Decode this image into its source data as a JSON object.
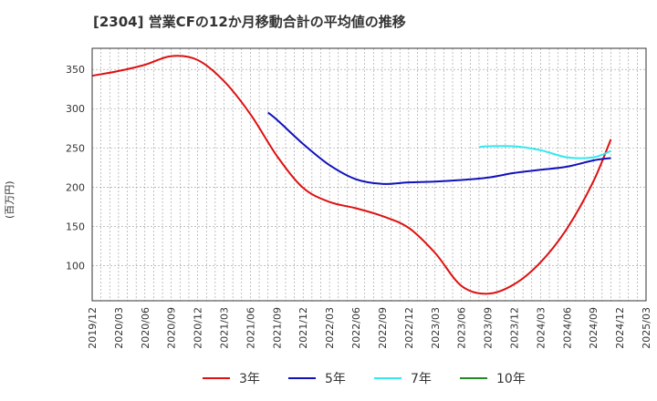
{
  "chart_data": {
    "type": "line",
    "title": "[2304]  営業CFの12か月移動合計の平均値の推移",
    "ylabel": "(百万円)",
    "xlabel": "",
    "x_ticks": [
      "2019/12",
      "2020/03",
      "2020/06",
      "2020/09",
      "2020/12",
      "2021/03",
      "2021/06",
      "2021/09",
      "2021/12",
      "2022/03",
      "2022/06",
      "2022/09",
      "2022/12",
      "2023/03",
      "2023/06",
      "2023/09",
      "2023/12",
      "2024/03",
      "2024/06",
      "2024/09",
      "2024/12",
      "2025/03"
    ],
    "y_ticks": [
      100,
      150,
      200,
      250,
      300,
      350
    ],
    "xlim": [
      "2019/12",
      "2025/03"
    ],
    "ylim": [
      55,
      377
    ],
    "grid": true,
    "legend_position": "bottom",
    "series": [
      {
        "name": "3年",
        "color": "#dd1111",
        "points": [
          [
            "2019/12",
            342
          ],
          [
            "2020/03",
            348
          ],
          [
            "2020/06",
            356
          ],
          [
            "2020/09",
            367
          ],
          [
            "2020/12",
            362
          ],
          [
            "2021/03",
            335
          ],
          [
            "2021/06",
            293
          ],
          [
            "2021/09",
            240
          ],
          [
            "2021/12",
            199
          ],
          [
            "2022/03",
            181
          ],
          [
            "2022/06",
            173
          ],
          [
            "2022/09",
            163
          ],
          [
            "2022/12",
            148
          ],
          [
            "2023/03",
            116
          ],
          [
            "2023/06",
            74
          ],
          [
            "2023/09",
            64
          ],
          [
            "2023/12",
            76
          ],
          [
            "2024/03",
            104
          ],
          [
            "2024/06",
            147
          ],
          [
            "2024/09",
            207
          ],
          [
            "2024/11",
            261
          ]
        ]
      },
      {
        "name": "5年",
        "color": "#1111bb",
        "points": [
          [
            "2021/08",
            295
          ],
          [
            "2021/09",
            286
          ],
          [
            "2021/12",
            255
          ],
          [
            "2022/03",
            228
          ],
          [
            "2022/06",
            210
          ],
          [
            "2022/09",
            204
          ],
          [
            "2022/12",
            206
          ],
          [
            "2023/03",
            207
          ],
          [
            "2023/06",
            209
          ],
          [
            "2023/09",
            212
          ],
          [
            "2023/12",
            218
          ],
          [
            "2024/03",
            222
          ],
          [
            "2024/06",
            226
          ],
          [
            "2024/09",
            234
          ],
          [
            "2024/11",
            237
          ]
        ]
      },
      {
        "name": "7年",
        "color": "#33e8f0",
        "points": [
          [
            "2023/08",
            251
          ],
          [
            "2023/09",
            252
          ],
          [
            "2023/12",
            252
          ],
          [
            "2024/03",
            247
          ],
          [
            "2024/06",
            238
          ],
          [
            "2024/09",
            238
          ],
          [
            "2024/11",
            246
          ]
        ]
      },
      {
        "name": "10年",
        "color": "#228822",
        "points": []
      }
    ]
  }
}
